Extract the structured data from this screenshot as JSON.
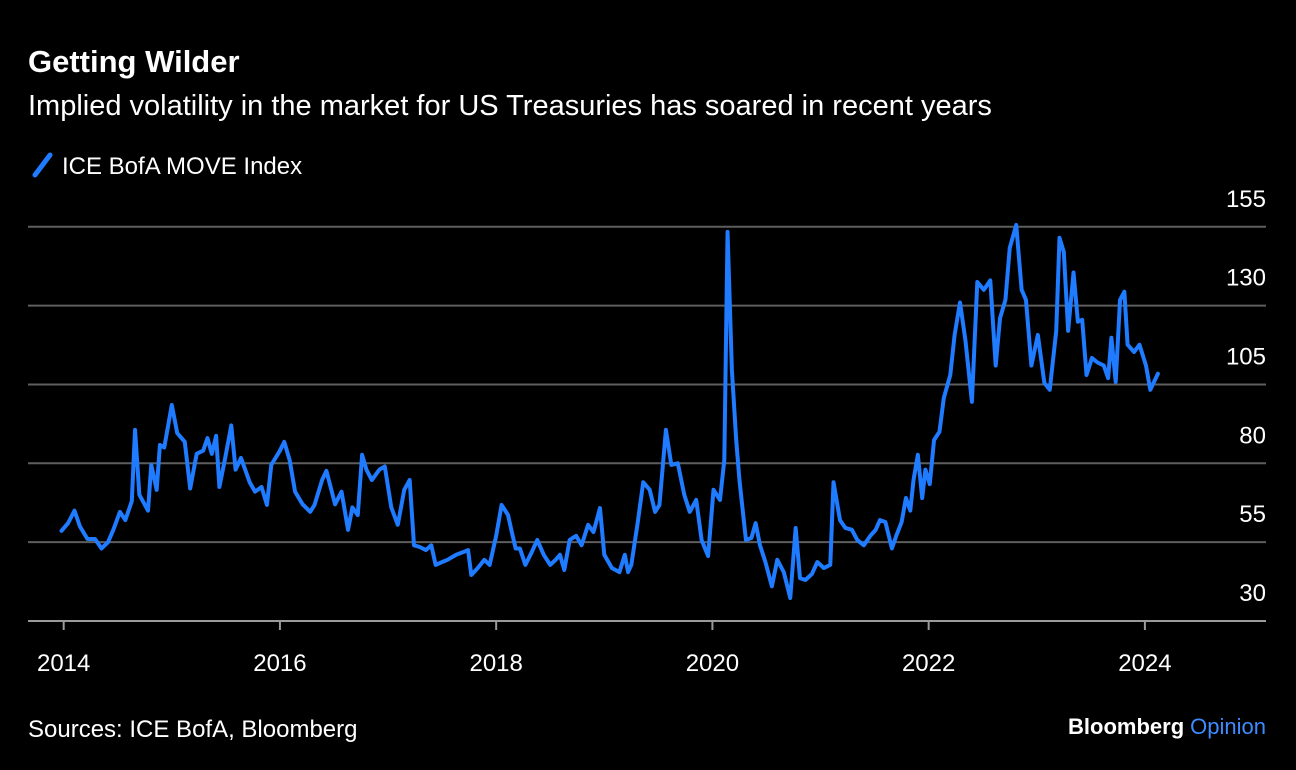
{
  "chart_data": {
    "type": "line",
    "title": "Getting Wilder",
    "subtitle": "Implied volatility in the market for US Treasuries has soared in recent years",
    "source": "Sources: ICE BofA, Bloomberg",
    "brand": "Bloomberg",
    "brand_suffix": "Opinion",
    "x": [
      2013.98,
      2014.04,
      2014.1,
      2014.15,
      2014.22,
      2014.29,
      2014.35,
      2014.41,
      2014.46,
      2014.52,
      2014.57,
      2014.63,
      2014.66,
      2014.7,
      2014.78,
      2014.81,
      2014.86,
      2014.89,
      2014.93,
      2015.0,
      2015.05,
      2015.12,
      2015.17,
      2015.23,
      2015.29,
      2015.33,
      2015.37,
      2015.41,
      2015.44,
      2015.49,
      2015.55,
      2015.59,
      2015.64,
      2015.72,
      2015.77,
      2015.83,
      2015.88,
      2015.92,
      2016.0,
      2016.04,
      2016.09,
      2016.14,
      2016.21,
      2016.28,
      2016.32,
      2016.39,
      2016.43,
      2016.51,
      2016.57,
      2016.63,
      2016.67,
      2016.72,
      2016.76,
      2016.8,
      2016.85,
      2016.92,
      2016.97,
      2017.03,
      2017.09,
      2017.15,
      2017.2,
      2017.24,
      2017.29,
      2017.35,
      2017.4,
      2017.44,
      2017.5,
      2017.55,
      2017.63,
      2017.7,
      2017.74,
      2017.77,
      2017.83,
      2017.89,
      2017.94,
      2018.0,
      2018.05,
      2018.11,
      2018.14,
      2018.18,
      2018.22,
      2018.27,
      2018.33,
      2018.38,
      2018.44,
      2018.5,
      2018.55,
      2018.59,
      2018.63,
      2018.68,
      2018.74,
      2018.79,
      2018.85,
      2018.9,
      2018.96,
      2019.0,
      2019.07,
      2019.14,
      2019.19,
      2019.22,
      2019.25,
      2019.31,
      2019.36,
      2019.42,
      2019.47,
      2019.51,
      2019.57,
      2019.62,
      2019.68,
      2019.74,
      2019.79,
      2019.85,
      2019.9,
      2019.96,
      2020.01,
      2020.07,
      2020.11,
      2020.14,
      2020.18,
      2020.22,
      2020.25,
      2020.31,
      2020.36,
      2020.4,
      2020.44,
      2020.49,
      2020.55,
      2020.6,
      2020.66,
      2020.72,
      2020.77,
      2020.81,
      2020.86,
      2020.92,
      2020.97,
      2021.03,
      2021.09,
      2021.12,
      2021.18,
      2021.23,
      2021.29,
      2021.34,
      2021.4,
      2021.46,
      2021.51,
      2021.55,
      2021.6,
      2021.66,
      2021.7,
      2021.75,
      2021.79,
      2021.83,
      2021.86,
      2021.9,
      2021.94,
      2021.97,
      2022.01,
      2022.05,
      2022.1,
      2022.14,
      2022.2,
      2022.24,
      2022.29,
      2022.34,
      2022.4,
      2022.45,
      2022.51,
      2022.57,
      2022.62,
      2022.66,
      2022.71,
      2022.75,
      2022.81,
      2022.86,
      2022.9,
      2022.95,
      2023.01,
      2023.07,
      2023.12,
      2023.18,
      2023.21,
      2023.25,
      2023.29,
      2023.34,
      2023.38,
      2023.42,
      2023.46,
      2023.51,
      2023.56,
      2023.62,
      2023.66,
      2023.69,
      2023.73,
      2023.77,
      2023.81,
      2023.84,
      2023.9,
      2023.95,
      2024.01,
      2024.05,
      2024.12
    ],
    "series": [
      {
        "name": "ICE BofA MOVE Index",
        "color": "#1f7bff",
        "values": [
          58.6,
          61,
          65,
          60,
          56,
          56,
          53,
          55,
          59,
          64.6,
          62,
          68,
          90.6,
          70,
          65,
          79.5,
          71.6,
          85.8,
          85,
          98.5,
          89.6,
          86.8,
          72,
          83,
          84,
          88,
          83,
          88.7,
          72.5,
          81,
          92,
          78,
          81.7,
          74,
          71,
          72.5,
          66.8,
          79.5,
          84,
          86.8,
          81,
          71,
          67,
          64.6,
          66.8,
          74.7,
          77.6,
          67,
          71,
          58.9,
          66,
          63.6,
          82.7,
          78,
          74.7,
          78,
          79,
          66,
          60.5,
          71.6,
          74.7,
          54,
          53.5,
          52.5,
          54,
          47.8,
          48.7,
          49.4,
          51,
          51.9,
          52.5,
          44.6,
          46.8,
          49.4,
          47.8,
          57,
          66.8,
          63.6,
          58.9,
          53,
          53,
          47.8,
          51.9,
          55.7,
          51,
          47.8,
          49.4,
          51,
          46.2,
          55.7,
          57,
          54,
          60.5,
          58.2,
          65.8,
          51,
          46.8,
          45.5,
          51,
          45.5,
          47.8,
          61.4,
          74,
          71.6,
          64.6,
          66.8,
          90.6,
          79.5,
          80,
          70,
          64.6,
          68.4,
          55.7,
          50.6,
          71.6,
          68.4,
          81,
          153.4,
          109.6,
          87.4,
          74.7,
          55.7,
          56.3,
          61,
          54,
          48.7,
          41,
          49.4,
          45.5,
          37.3,
          59.5,
          43.6,
          43,
          44.9,
          48.7,
          46.8,
          47.8,
          74,
          62,
          59.5,
          58.9,
          55.7,
          54,
          57,
          58.9,
          62,
          61.4,
          53,
          57,
          61.4,
          69,
          65,
          74.7,
          82.7,
          69,
          78,
          73.4,
          87.4,
          90,
          100.7,
          108,
          120.7,
          131,
          119,
          99.5,
          137.5,
          135,
          138,
          111,
          126,
          131.8,
          148.3,
          155.6,
          135,
          131.8,
          111,
          120.7,
          105.5,
          103.3,
          122,
          151.5,
          147,
          122,
          140.5,
          124.9,
          125.5,
          108,
          113.4,
          112,
          111,
          107,
          119.8,
          105.8,
          131.8,
          134.4,
          117.6,
          115.3,
          117.6,
          111,
          103.3,
          108.4
        ]
      }
    ],
    "xlim": [
      2013.67,
      2025.12
    ],
    "xticks": [
      2014,
      2016,
      2018,
      2020,
      2022,
      2024
    ],
    "ylim": [
      30,
      160
    ],
    "yticks": [
      30,
      55,
      80,
      105,
      130,
      155
    ],
    "grid": true
  }
}
